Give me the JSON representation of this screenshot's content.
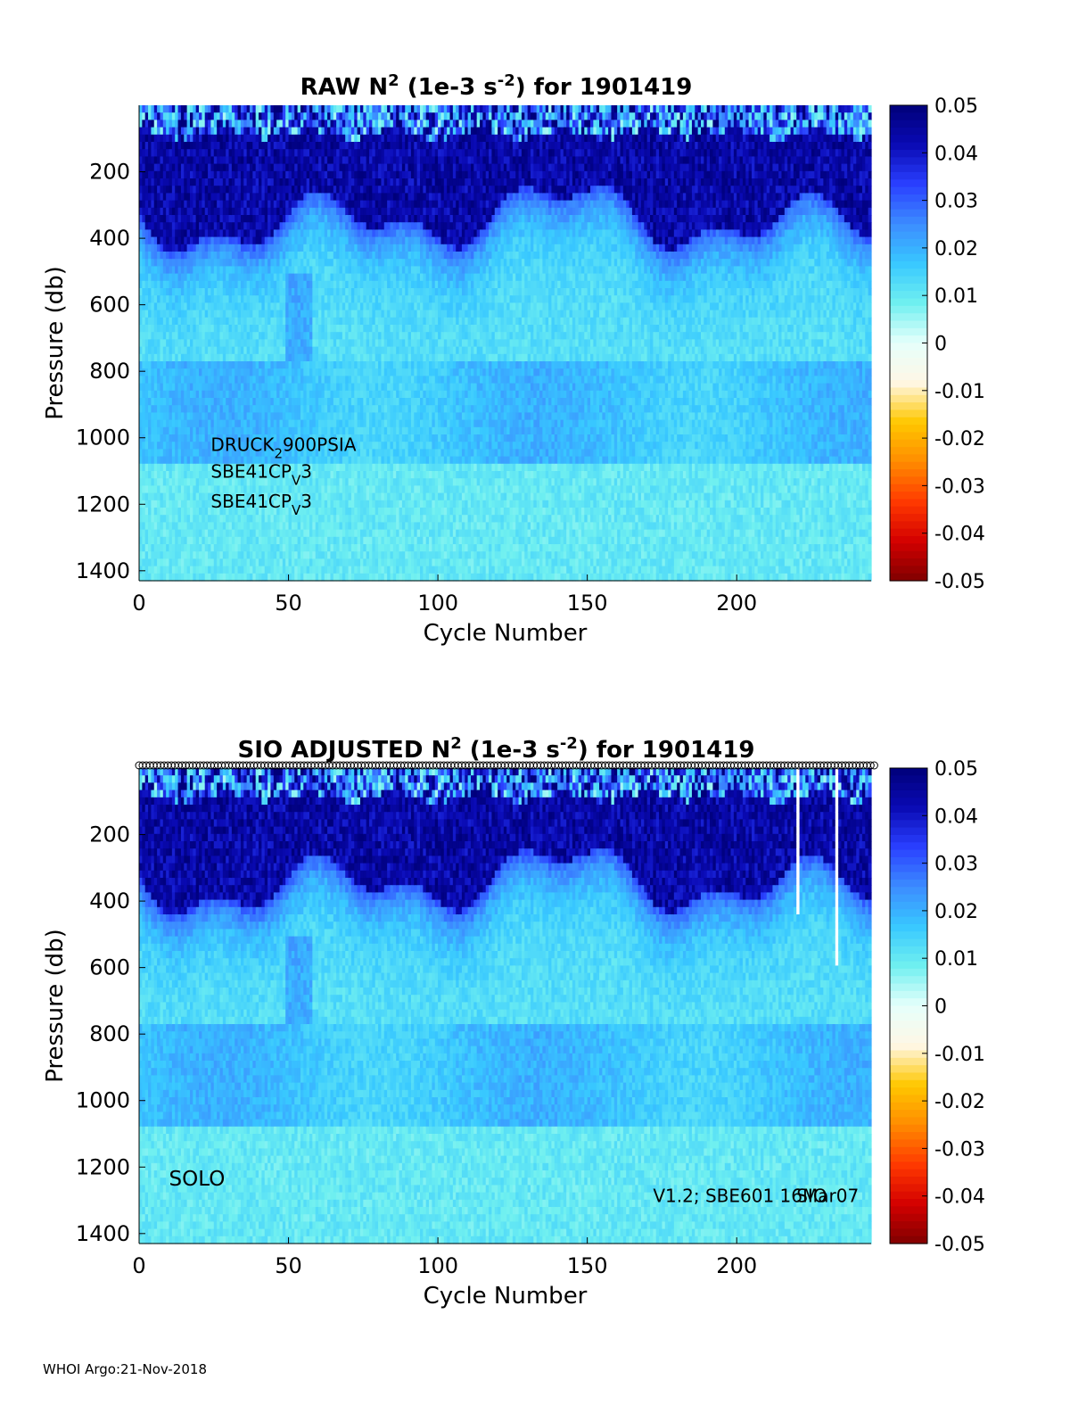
{
  "footer": "WHOI Argo:21-Nov-2018",
  "colors": {
    "colormap": [
      "#800000",
      "#d40000",
      "#ff3a00",
      "#ff8c00",
      "#ffc800",
      "#fff7e6",
      "#e6fffb",
      "#70f0f0",
      "#38c8ff",
      "#3c8cff",
      "#2a40ff",
      "#0a0ab4",
      "#00007a"
    ],
    "frame": "#000000"
  },
  "chart_data": [
    {
      "type": "heatmap",
      "name": "raw",
      "title_parts": [
        "RAW N",
        "2",
        " (1e-3 s",
        "-2",
        ") for 1901419"
      ],
      "xlabel": "Cycle Number",
      "ylabel": "Pressure (db)",
      "x_range": [
        0,
        245
      ],
      "y_range": [
        0,
        1430
      ],
      "x_ticks": [
        0,
        50,
        100,
        150,
        200
      ],
      "y_ticks": [
        200,
        400,
        600,
        800,
        1000,
        1200,
        1400
      ],
      "color_range": [
        -0.05,
        0.05
      ],
      "colorbar_ticks": [
        "0.05",
        "0.04",
        "0.03",
        "0.02",
        "0.01",
        "0",
        "-0.01",
        "-0.02",
        "-0.03",
        "-0.04",
        "-0.05"
      ],
      "annotations": [
        {
          "parts": [
            "DRUCK",
            "2",
            "900PSIA"
          ],
          "sub": [
            false,
            true,
            false
          ],
          "pos": [
            24,
            1040
          ]
        },
        {
          "parts": [
            "SBE41CP",
            "V",
            "3"
          ],
          "sub": [
            false,
            true,
            false
          ],
          "pos": [
            24,
            1120
          ]
        },
        {
          "parts": [
            "SBE41CP",
            "V",
            "3"
          ],
          "sub": [
            false,
            true,
            false
          ],
          "pos": [
            24,
            1210
          ]
        }
      ],
      "gaps": []
    },
    {
      "type": "heatmap",
      "name": "adjusted",
      "title_parts": [
        "SIO  ADJUSTED N",
        "2",
        " (1e-3 s",
        "-2",
        ") for 1901419"
      ],
      "xlabel": "Cycle Number",
      "ylabel": "Pressure (db)",
      "x_range": [
        0,
        245
      ],
      "y_range": [
        0,
        1430
      ],
      "x_ticks": [
        0,
        50,
        100,
        150,
        200
      ],
      "y_ticks": [
        200,
        400,
        600,
        800,
        1000,
        1200,
        1400
      ],
      "color_range": [
        -0.05,
        0.05
      ],
      "colorbar_ticks": [
        "0.05",
        "0.04",
        "0.03",
        "0.02",
        "0.01",
        "0",
        "-0.01",
        "-0.02",
        "-0.03",
        "-0.04",
        "-0.05"
      ],
      "annotations": [
        {
          "parts": [
            "SOLO"
          ],
          "sub": [
            false
          ],
          "pos": [
            10,
            1255
          ],
          "big": true
        },
        {
          "parts": [
            "V1.2; SBE601 16Mar07"
          ],
          "sub": [
            false
          ],
          "pos": [
            172,
            1305
          ]
        },
        {
          "parts": [
            "SIO"
          ],
          "sub": [
            false
          ],
          "pos": [
            220,
            1305
          ]
        }
      ],
      "qc_markers": "o",
      "gaps": [
        [
          220,
          0,
          440
        ],
        [
          233,
          0,
          580
        ]
      ]
    }
  ]
}
